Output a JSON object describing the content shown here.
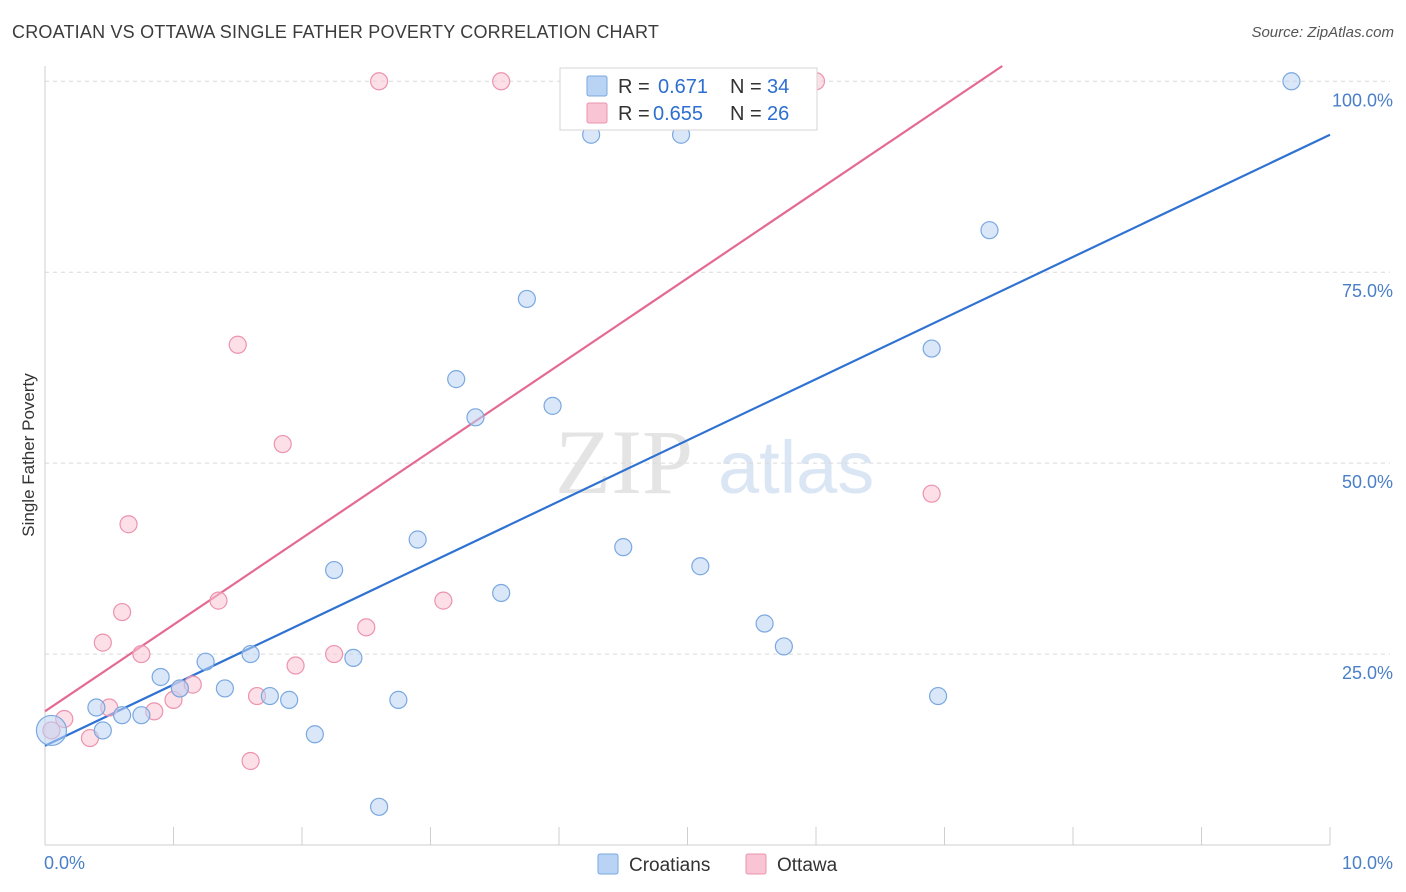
{
  "title": "CROATIAN VS OTTAWA SINGLE FATHER POVERTY CORRELATION CHART",
  "source": "Source: ZipAtlas.com",
  "watermark": {
    "zip": "ZIP",
    "atlas": "atlas"
  },
  "colors": {
    "croatians_fill": "#b9d3f4",
    "croatians_stroke": "#7aa8e0",
    "croatians_line": "#2f72d2",
    "ottawa_fill": "#f9c4d3",
    "ottawa_stroke": "#ec93ae",
    "ottawa_line": "#e46a92",
    "grid": "#d9d9d9",
    "tick_label": "#4a7fc8"
  },
  "legend_top": {
    "rows": [
      {
        "series": "Croatians",
        "r_label": "R =",
        "r_value": "0.671",
        "n_label": "N =",
        "n_value": "34"
      },
      {
        "series": "Ottawa",
        "r_label": "R =",
        "r_value": "0.655",
        "n_label": "N =",
        "n_value": "26"
      }
    ]
  },
  "chart_data": {
    "type": "scatter",
    "title": "CROATIAN VS OTTAWA SINGLE FATHER POVERTY CORRELATION CHART",
    "xlabel": "",
    "ylabel": "Single Father Poverty",
    "xlim": [
      0,
      10
    ],
    "ylim": [
      0,
      102
    ],
    "x_tick_labels": [
      "0.0%",
      "10.0%"
    ],
    "y_ticks": [
      {
        "value": 25,
        "label": "25.0%"
      },
      {
        "value": 50,
        "label": "50.0%"
      },
      {
        "value": 75,
        "label": "75.0%"
      },
      {
        "value": 100,
        "label": "100.0%"
      }
    ],
    "grid": true,
    "legend": "bottom-center",
    "series": [
      {
        "name": "Croatians",
        "points": [
          {
            "x": 0.05,
            "y": 15.0,
            "size": "large"
          },
          {
            "x": 0.45,
            "y": 15.0
          },
          {
            "x": 0.4,
            "y": 18.0
          },
          {
            "x": 0.6,
            "y": 17.0
          },
          {
            "x": 0.75,
            "y": 17.0
          },
          {
            "x": 0.9,
            "y": 22.0
          },
          {
            "x": 1.05,
            "y": 20.5
          },
          {
            "x": 1.25,
            "y": 24.0
          },
          {
            "x": 1.4,
            "y": 20.5
          },
          {
            "x": 1.6,
            "y": 25.0
          },
          {
            "x": 1.75,
            "y": 19.5
          },
          {
            "x": 1.9,
            "y": 19.0
          },
          {
            "x": 2.1,
            "y": 14.5
          },
          {
            "x": 2.25,
            "y": 36.0
          },
          {
            "x": 2.4,
            "y": 24.5
          },
          {
            "x": 2.6,
            "y": 5.0
          },
          {
            "x": 2.75,
            "y": 19.0
          },
          {
            "x": 2.9,
            "y": 40.0
          },
          {
            "x": 3.2,
            "y": 61.0
          },
          {
            "x": 3.35,
            "y": 56.0
          },
          {
            "x": 3.55,
            "y": 33.0
          },
          {
            "x": 3.75,
            "y": 71.5
          },
          {
            "x": 3.95,
            "y": 57.5
          },
          {
            "x": 4.25,
            "y": 93.0
          },
          {
            "x": 4.5,
            "y": 39.0
          },
          {
            "x": 4.95,
            "y": 93.0
          },
          {
            "x": 5.1,
            "y": 36.5
          },
          {
            "x": 5.3,
            "y": 100.0
          },
          {
            "x": 5.6,
            "y": 29.0
          },
          {
            "x": 5.75,
            "y": 26.0
          },
          {
            "x": 6.9,
            "y": 65.0
          },
          {
            "x": 6.95,
            "y": 19.5
          },
          {
            "x": 7.35,
            "y": 80.5
          },
          {
            "x": 9.7,
            "y": 100.0
          }
        ],
        "trend": {
          "x": [
            0.0,
            10.0
          ],
          "y": [
            13.0,
            93.0
          ]
        }
      },
      {
        "name": "Ottawa",
        "points": [
          {
            "x": 0.05,
            "y": 15.0
          },
          {
            "x": 0.15,
            "y": 16.5
          },
          {
            "x": 0.35,
            "y": 14.0
          },
          {
            "x": 0.5,
            "y": 18.0
          },
          {
            "x": 0.45,
            "y": 26.5
          },
          {
            "x": 0.6,
            "y": 30.5
          },
          {
            "x": 0.65,
            "y": 42.0
          },
          {
            "x": 0.75,
            "y": 25.0
          },
          {
            "x": 0.85,
            "y": 17.5
          },
          {
            "x": 1.0,
            "y": 19.0
          },
          {
            "x": 1.05,
            "y": 20.5
          },
          {
            "x": 1.15,
            "y": 21.0
          },
          {
            "x": 1.35,
            "y": 32.0
          },
          {
            "x": 1.5,
            "y": 65.5
          },
          {
            "x": 1.6,
            "y": 11.0
          },
          {
            "x": 1.65,
            "y": 19.5
          },
          {
            "x": 1.85,
            "y": 52.5
          },
          {
            "x": 1.95,
            "y": 23.5
          },
          {
            "x": 2.25,
            "y": 25.0
          },
          {
            "x": 2.5,
            "y": 28.5
          },
          {
            "x": 2.6,
            "y": 100.0
          },
          {
            "x": 3.1,
            "y": 32.0
          },
          {
            "x": 3.55,
            "y": 100.0
          },
          {
            "x": 4.5,
            "y": 100.0
          },
          {
            "x": 6.0,
            "y": 100.0
          },
          {
            "x": 6.9,
            "y": 46.0
          }
        ],
        "trend": {
          "x": [
            0.0,
            7.45
          ],
          "y": [
            17.5,
            102.0
          ]
        }
      }
    ]
  }
}
